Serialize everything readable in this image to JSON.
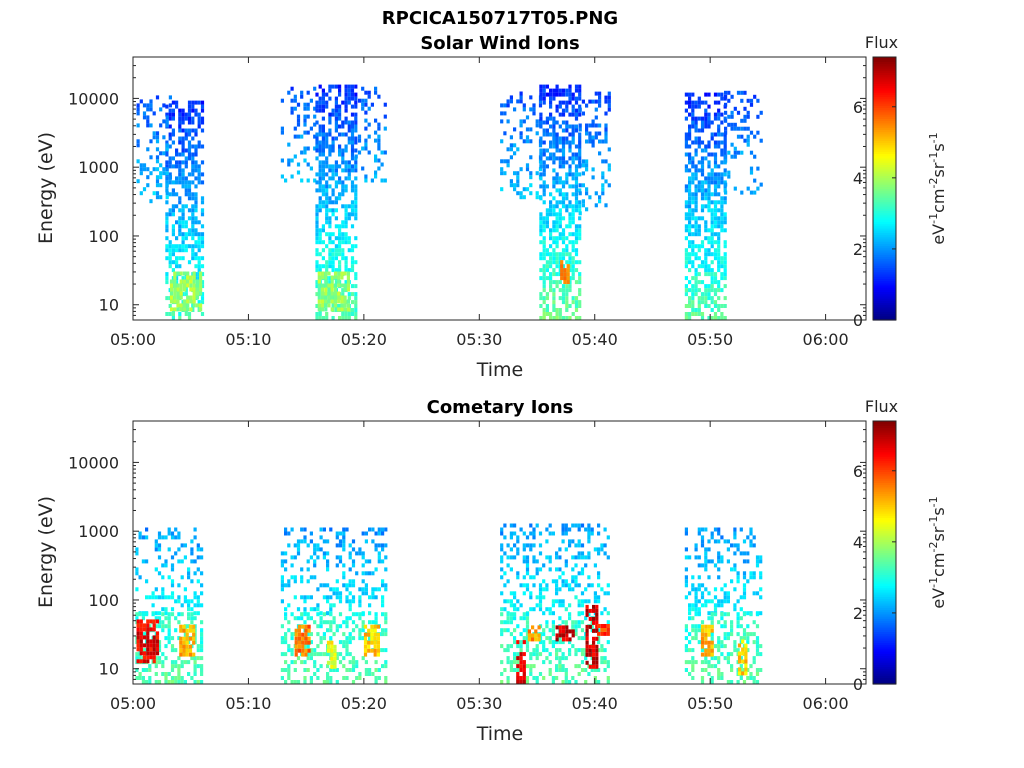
{
  "figure_title": "RPCICA150717T05.PNG",
  "chart_data": [
    {
      "type": "heatmap",
      "title": "Solar Wind Ions",
      "xlabel": "Time",
      "ylabel": "Energy (eV)",
      "x_ticks": [
        "05:00",
        "05:10",
        "05:20",
        "05:30",
        "05:40",
        "05:50",
        "06:00"
      ],
      "x_range_minutes": [
        0,
        63.5
      ],
      "y_scale": "log",
      "y_ticks": [
        "10",
        "100",
        "1000",
        "10000"
      ],
      "y_range": [
        6,
        40000
      ],
      "colorbar": {
        "title": "Flux",
        "label": "eV-1cm-2sr-1s-1",
        "ticks": [
          "0",
          "2",
          "4",
          "6"
        ],
        "range": [
          0,
          7.4
        ],
        "colormap": "jet"
      },
      "blobs": [
        {
          "t": [
            2.8,
            6.0
          ],
          "e": [
            6,
            9000
          ],
          "flux_high_e": 1.2,
          "flux_low_e": 3.2,
          "density": 0.55
        },
        {
          "t": [
            0.3,
            3.2
          ],
          "e": [
            300,
            12000
          ],
          "flux_high_e": 1.5,
          "flux_low_e": 2.4,
          "density": 0.25
        },
        {
          "t": [
            12.8,
            15.8
          ],
          "e": [
            600,
            14000
          ],
          "flux_high_e": 1.5,
          "flux_low_e": 2.3,
          "density": 0.22
        },
        {
          "t": [
            15.8,
            19.2
          ],
          "e": [
            6,
            14000
          ],
          "flux_high_e": 1.2,
          "flux_low_e": 3.4,
          "density": 0.6
        },
        {
          "t": [
            19.2,
            22.0
          ],
          "e": [
            600,
            14000
          ],
          "flux_high_e": 1.5,
          "flux_low_e": 2.2,
          "density": 0.22
        },
        {
          "t": [
            31.8,
            35.2
          ],
          "e": [
            300,
            12000
          ],
          "flux_high_e": 1.5,
          "flux_low_e": 2.4,
          "density": 0.25
        },
        {
          "t": [
            35.2,
            38.6
          ],
          "e": [
            6,
            14000
          ],
          "flux_high_e": 1.2,
          "flux_low_e": 3.6,
          "density": 0.6
        },
        {
          "t": [
            38.6,
            41.4
          ],
          "e": [
            200,
            12000
          ],
          "flux_high_e": 1.5,
          "flux_low_e": 2.3,
          "density": 0.25
        },
        {
          "t": [
            47.8,
            51.2
          ],
          "e": [
            6,
            12000
          ],
          "flux_high_e": 1.2,
          "flux_low_e": 3.4,
          "density": 0.6
        },
        {
          "t": [
            51.2,
            54.3
          ],
          "e": [
            400,
            12000
          ],
          "flux_high_e": 1.5,
          "flux_low_e": 2.3,
          "density": 0.22
        }
      ],
      "hotspots": [
        {
          "t": [
            37.0,
            37.8
          ],
          "e": [
            20,
            40
          ],
          "flux": 5.4
        },
        {
          "t": [
            3.2,
            5.8
          ],
          "e": [
            8,
            30
          ],
          "flux": 3.9
        },
        {
          "t": [
            16.0,
            18.8
          ],
          "e": [
            8,
            30
          ],
          "flux": 3.8
        }
      ]
    },
    {
      "type": "heatmap",
      "title": "Cometary Ions",
      "xlabel": "Time",
      "ylabel": "Energy (eV)",
      "x_ticks": [
        "05:00",
        "05:10",
        "05:20",
        "05:30",
        "05:40",
        "05:50",
        "06:00"
      ],
      "x_range_minutes": [
        0,
        63.5
      ],
      "y_scale": "log",
      "y_ticks": [
        "10",
        "100",
        "1000",
        "10000"
      ],
      "y_range": [
        6,
        40000
      ],
      "colorbar": {
        "title": "Flux",
        "label": "eV-1cm-2sr-1s-1",
        "ticks": [
          "0",
          "2",
          "4",
          "6"
        ],
        "range": [
          0,
          7.4
        ],
        "colormap": "jet"
      },
      "blobs": [
        {
          "t": [
            0.2,
            6.0
          ],
          "e": [
            60,
            1100
          ],
          "flux_high_e": 2.0,
          "flux_low_e": 2.8,
          "density": 0.3
        },
        {
          "t": [
            12.8,
            22.0
          ],
          "e": [
            60,
            1100
          ],
          "flux_high_e": 2.0,
          "flux_low_e": 2.7,
          "density": 0.28
        },
        {
          "t": [
            31.8,
            41.2
          ],
          "e": [
            60,
            1200
          ],
          "flux_high_e": 2.0,
          "flux_low_e": 2.8,
          "density": 0.32
        },
        {
          "t": [
            47.8,
            54.3
          ],
          "e": [
            60,
            1100
          ],
          "flux_high_e": 2.0,
          "flux_low_e": 2.7,
          "density": 0.3
        },
        {
          "t": [
            0.2,
            6.0
          ],
          "e": [
            6,
            60
          ],
          "flux_high_e": 3.0,
          "flux_low_e": 3.4,
          "density": 0.45
        },
        {
          "t": [
            12.8,
            22.0
          ],
          "e": [
            6,
            60
          ],
          "flux_high_e": 3.0,
          "flux_low_e": 3.4,
          "density": 0.4
        },
        {
          "t": [
            31.8,
            41.2
          ],
          "e": [
            6,
            60
          ],
          "flux_high_e": 3.0,
          "flux_low_e": 3.4,
          "density": 0.42
        },
        {
          "t": [
            47.8,
            54.3
          ],
          "e": [
            6,
            60
          ],
          "flux_high_e": 3.0,
          "flux_low_e": 3.4,
          "density": 0.4
        }
      ],
      "hotspots": [
        {
          "t": [
            0.3,
            2.2
          ],
          "e": [
            12,
            50
          ],
          "flux": 6.6
        },
        {
          "t": [
            4.0,
            5.3
          ],
          "e": [
            15,
            40
          ],
          "flux": 5.2
        },
        {
          "t": [
            14.0,
            15.2
          ],
          "e": [
            15,
            40
          ],
          "flux": 5.6
        },
        {
          "t": [
            16.8,
            17.6
          ],
          "e": [
            10,
            25
          ],
          "flux": 4.6
        },
        {
          "t": [
            20.0,
            21.2
          ],
          "e": [
            15,
            40
          ],
          "flux": 5.0
        },
        {
          "t": [
            33.2,
            33.9
          ],
          "e": [
            6,
            25
          ],
          "flux": 6.7
        },
        {
          "t": [
            34.2,
            35.2
          ],
          "e": [
            25,
            40
          ],
          "flux": 5.4
        },
        {
          "t": [
            36.6,
            38.2
          ],
          "e": [
            25,
            40
          ],
          "flux": 6.8
        },
        {
          "t": [
            39.2,
            40.2
          ],
          "e": [
            10,
            80
          ],
          "flux": 6.8
        },
        {
          "t": [
            40.2,
            41.2
          ],
          "e": [
            30,
            40
          ],
          "flux": 6.0
        },
        {
          "t": [
            49.2,
            50.2
          ],
          "e": [
            15,
            40
          ],
          "flux": 5.2
        },
        {
          "t": [
            52.4,
            53.2
          ],
          "e": [
            8,
            25
          ],
          "flux": 5.0
        }
      ]
    }
  ]
}
